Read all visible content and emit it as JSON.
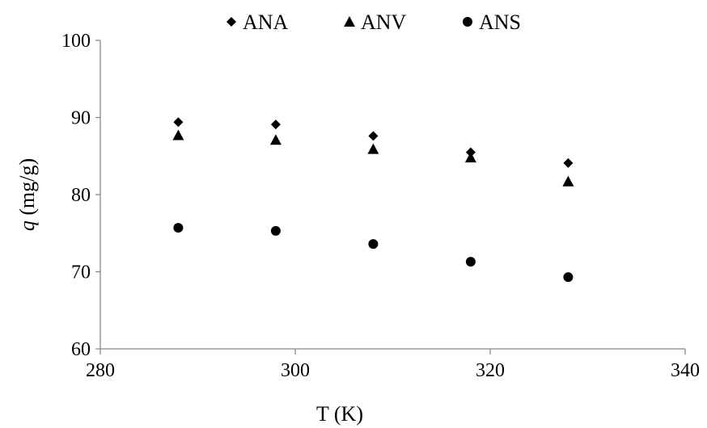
{
  "chart_data": {
    "type": "scatter",
    "title": "",
    "xlabel": "T  (K)",
    "ylabel_italic": "q",
    "ylabel_rest": " (mg/g)",
    "xlim": [
      280,
      340
    ],
    "ylim": [
      60,
      100
    ],
    "xticks": [
      280,
      300,
      320,
      340
    ],
    "yticks": [
      60,
      70,
      80,
      90,
      100
    ],
    "grid": false,
    "legend_position": "top",
    "series": [
      {
        "name": "ANA",
        "marker": "diamond",
        "color": "#000000",
        "points": [
          [
            288,
            89.4
          ],
          [
            298,
            89.1
          ],
          [
            308,
            87.6
          ],
          [
            318,
            85.5
          ],
          [
            328,
            84.1
          ]
        ]
      },
      {
        "name": "ANV",
        "marker": "triangle",
        "color": "#000000",
        "points": [
          [
            288,
            87.7
          ],
          [
            298,
            87.1
          ],
          [
            308,
            85.9
          ],
          [
            318,
            84.8
          ],
          [
            328,
            81.7
          ]
        ]
      },
      {
        "name": "ANS",
        "marker": "circle",
        "color": "#000000",
        "points": [
          [
            288,
            75.7
          ],
          [
            298,
            75.3
          ],
          [
            308,
            73.6
          ],
          [
            318,
            71.3
          ],
          [
            328,
            69.3
          ]
        ]
      }
    ]
  }
}
